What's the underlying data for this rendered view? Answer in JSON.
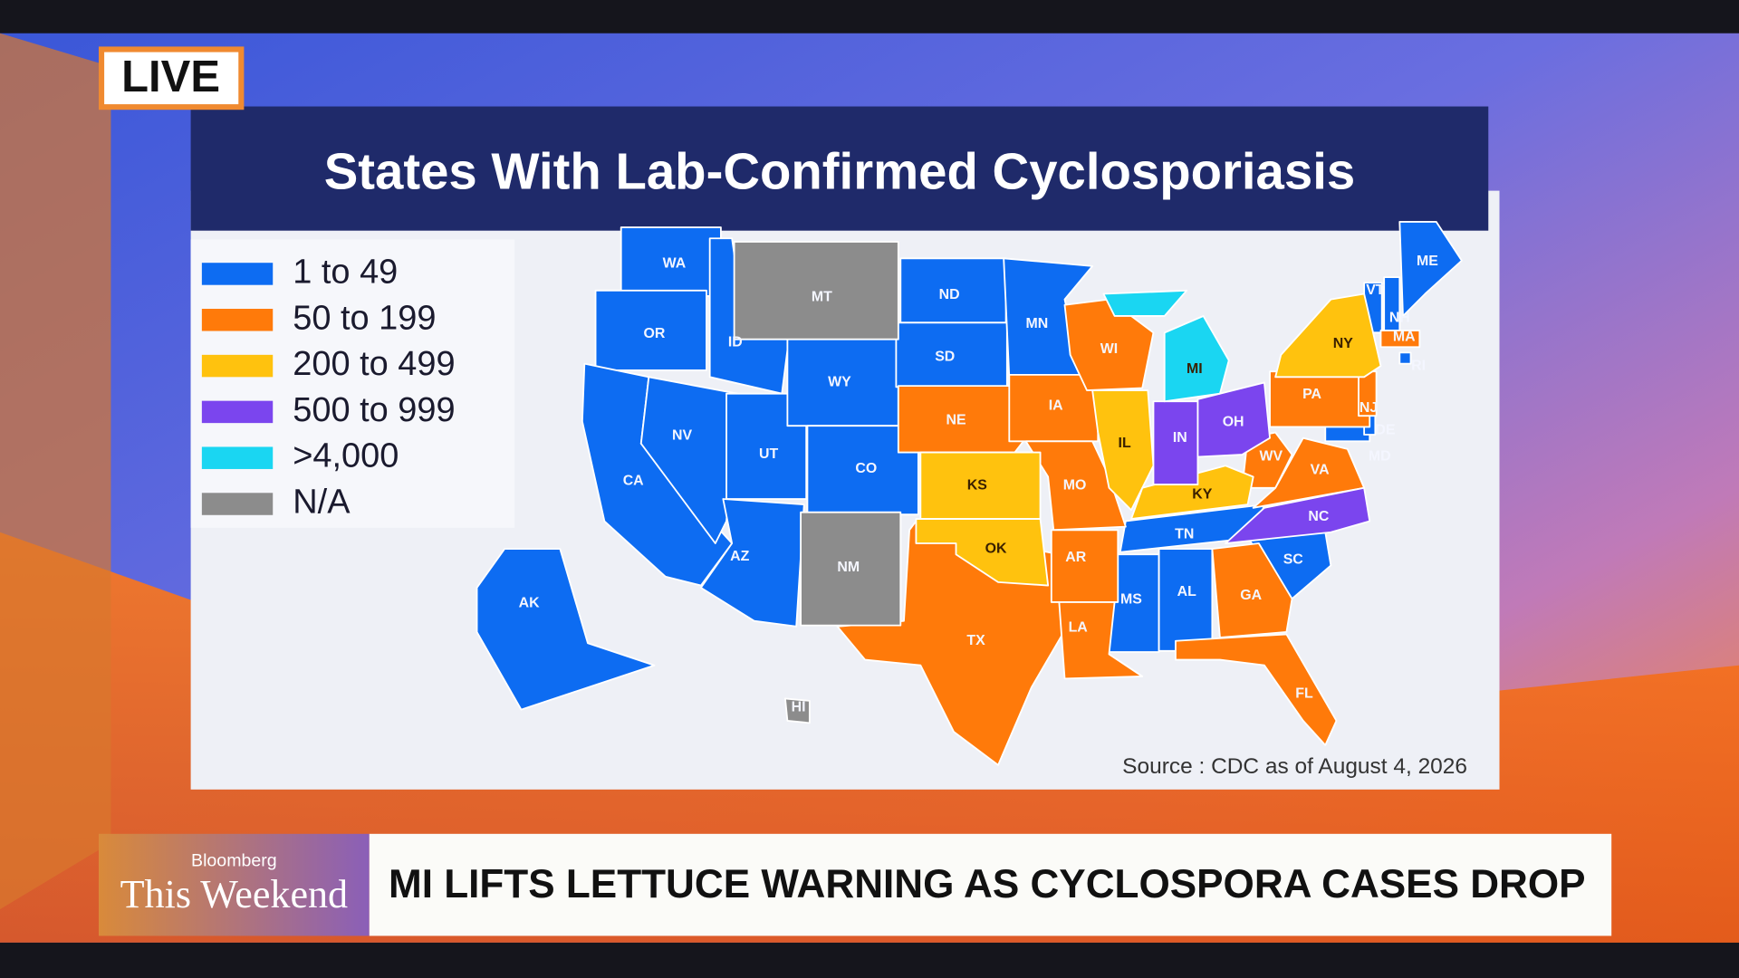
{
  "live_badge": "LIVE",
  "map": {
    "title": "States With Lab-Confirmed Cyclosporiasis",
    "legend": [
      {
        "label": "1 to 49",
        "color": "#0d6cf2",
        "states": [
          "WA",
          "OR",
          "CA",
          "NV",
          "ID",
          "UT",
          "AZ",
          "WY",
          "CO",
          "ND",
          "SD",
          "MN",
          "TN",
          "MS",
          "AL",
          "SC",
          "AK",
          "VT",
          "NH",
          "ME",
          "MD",
          "DE",
          "RI"
        ]
      },
      {
        "label": "50 to 199",
        "color": "#ff7a0a",
        "states": [
          "NE",
          "TX",
          "IA",
          "MO",
          "AR",
          "LA",
          "WI",
          "GA",
          "FL",
          "WV",
          "VA",
          "PA",
          "NJ",
          "MA"
        ]
      },
      {
        "label": "200 to 499",
        "color": "#ffc20e",
        "states": [
          "KS",
          "OK",
          "IL",
          "KY",
          "NY"
        ]
      },
      {
        "label": "500 to 999",
        "color": "#7b45ee",
        "states": [
          "IN",
          "OH",
          "NC"
        ]
      },
      {
        "label": ">4,000",
        "color": "#1ad6f2",
        "states": [
          "MI"
        ]
      },
      {
        "label": "N/A",
        "color": "#8c8c8c",
        "states": [
          "MT",
          "NM",
          "HI"
        ]
      }
    ],
    "source": "Source : CDC as of August 4, 2026"
  },
  "lower_third": {
    "brand": "Bloomberg",
    "show": "This Weekend",
    "headline": "MI LIFTS LETTUCE WARNING AS CYCLOSPORA CASES DROP"
  }
}
